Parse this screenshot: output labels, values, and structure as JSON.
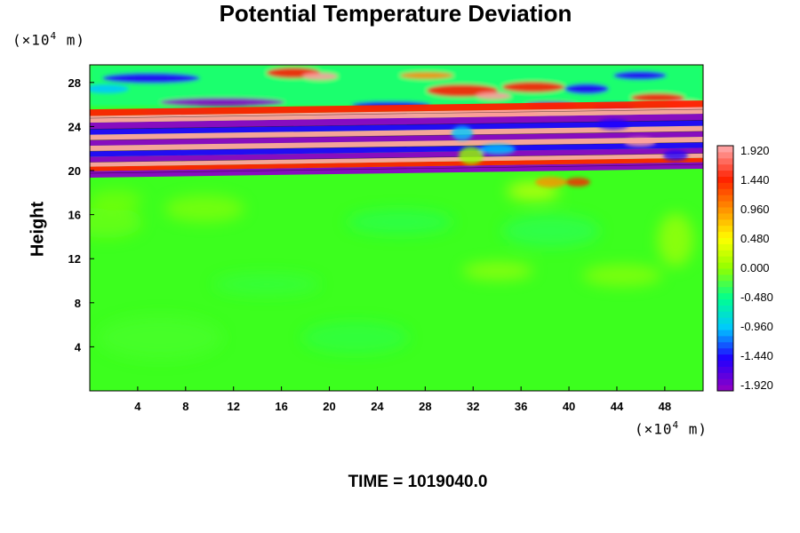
{
  "chart_data": {
    "type": "heatmap",
    "title": "Potential Temperature Deviation",
    "ylabel": "Height",
    "xlabel": "",
    "y_unit_prefix": "(×10",
    "y_unit_exp": "4",
    "y_unit_suffix": " m)",
    "x_unit_prefix": "(×10",
    "x_unit_exp": "4",
    "x_unit_suffix": " m)",
    "xlim": [
      0,
      51.2
    ],
    "ylim": [
      0,
      29.6
    ],
    "xticks": [
      4,
      8,
      12,
      16,
      20,
      24,
      28,
      32,
      36,
      40,
      44,
      48
    ],
    "yticks": [
      4,
      8,
      12,
      16,
      20,
      24,
      28
    ],
    "colorbar": {
      "min": -1.92,
      "max": 1.92,
      "labels": [
        "1.920",
        "1.440",
        "0.960",
        "0.480",
        "0.000",
        "-0.480",
        "-0.960",
        "-1.440",
        "-1.920"
      ],
      "colormap": [
        "#8b00c8",
        "#2000ff",
        "#00c8ff",
        "#00ff90",
        "#90ff00",
        "#ffff00",
        "#ff9000",
        "#ff2000",
        "#ffa0a0"
      ]
    },
    "features": {
      "stable_layer_bottom_y": 19.6,
      "stable_layer_top_y": 26,
      "upper_wave_region_y": [
        26,
        29.6
      ],
      "lower_region_value": 0.0
    }
  },
  "footer": {
    "time_text": "TIME = 1019040.0"
  }
}
